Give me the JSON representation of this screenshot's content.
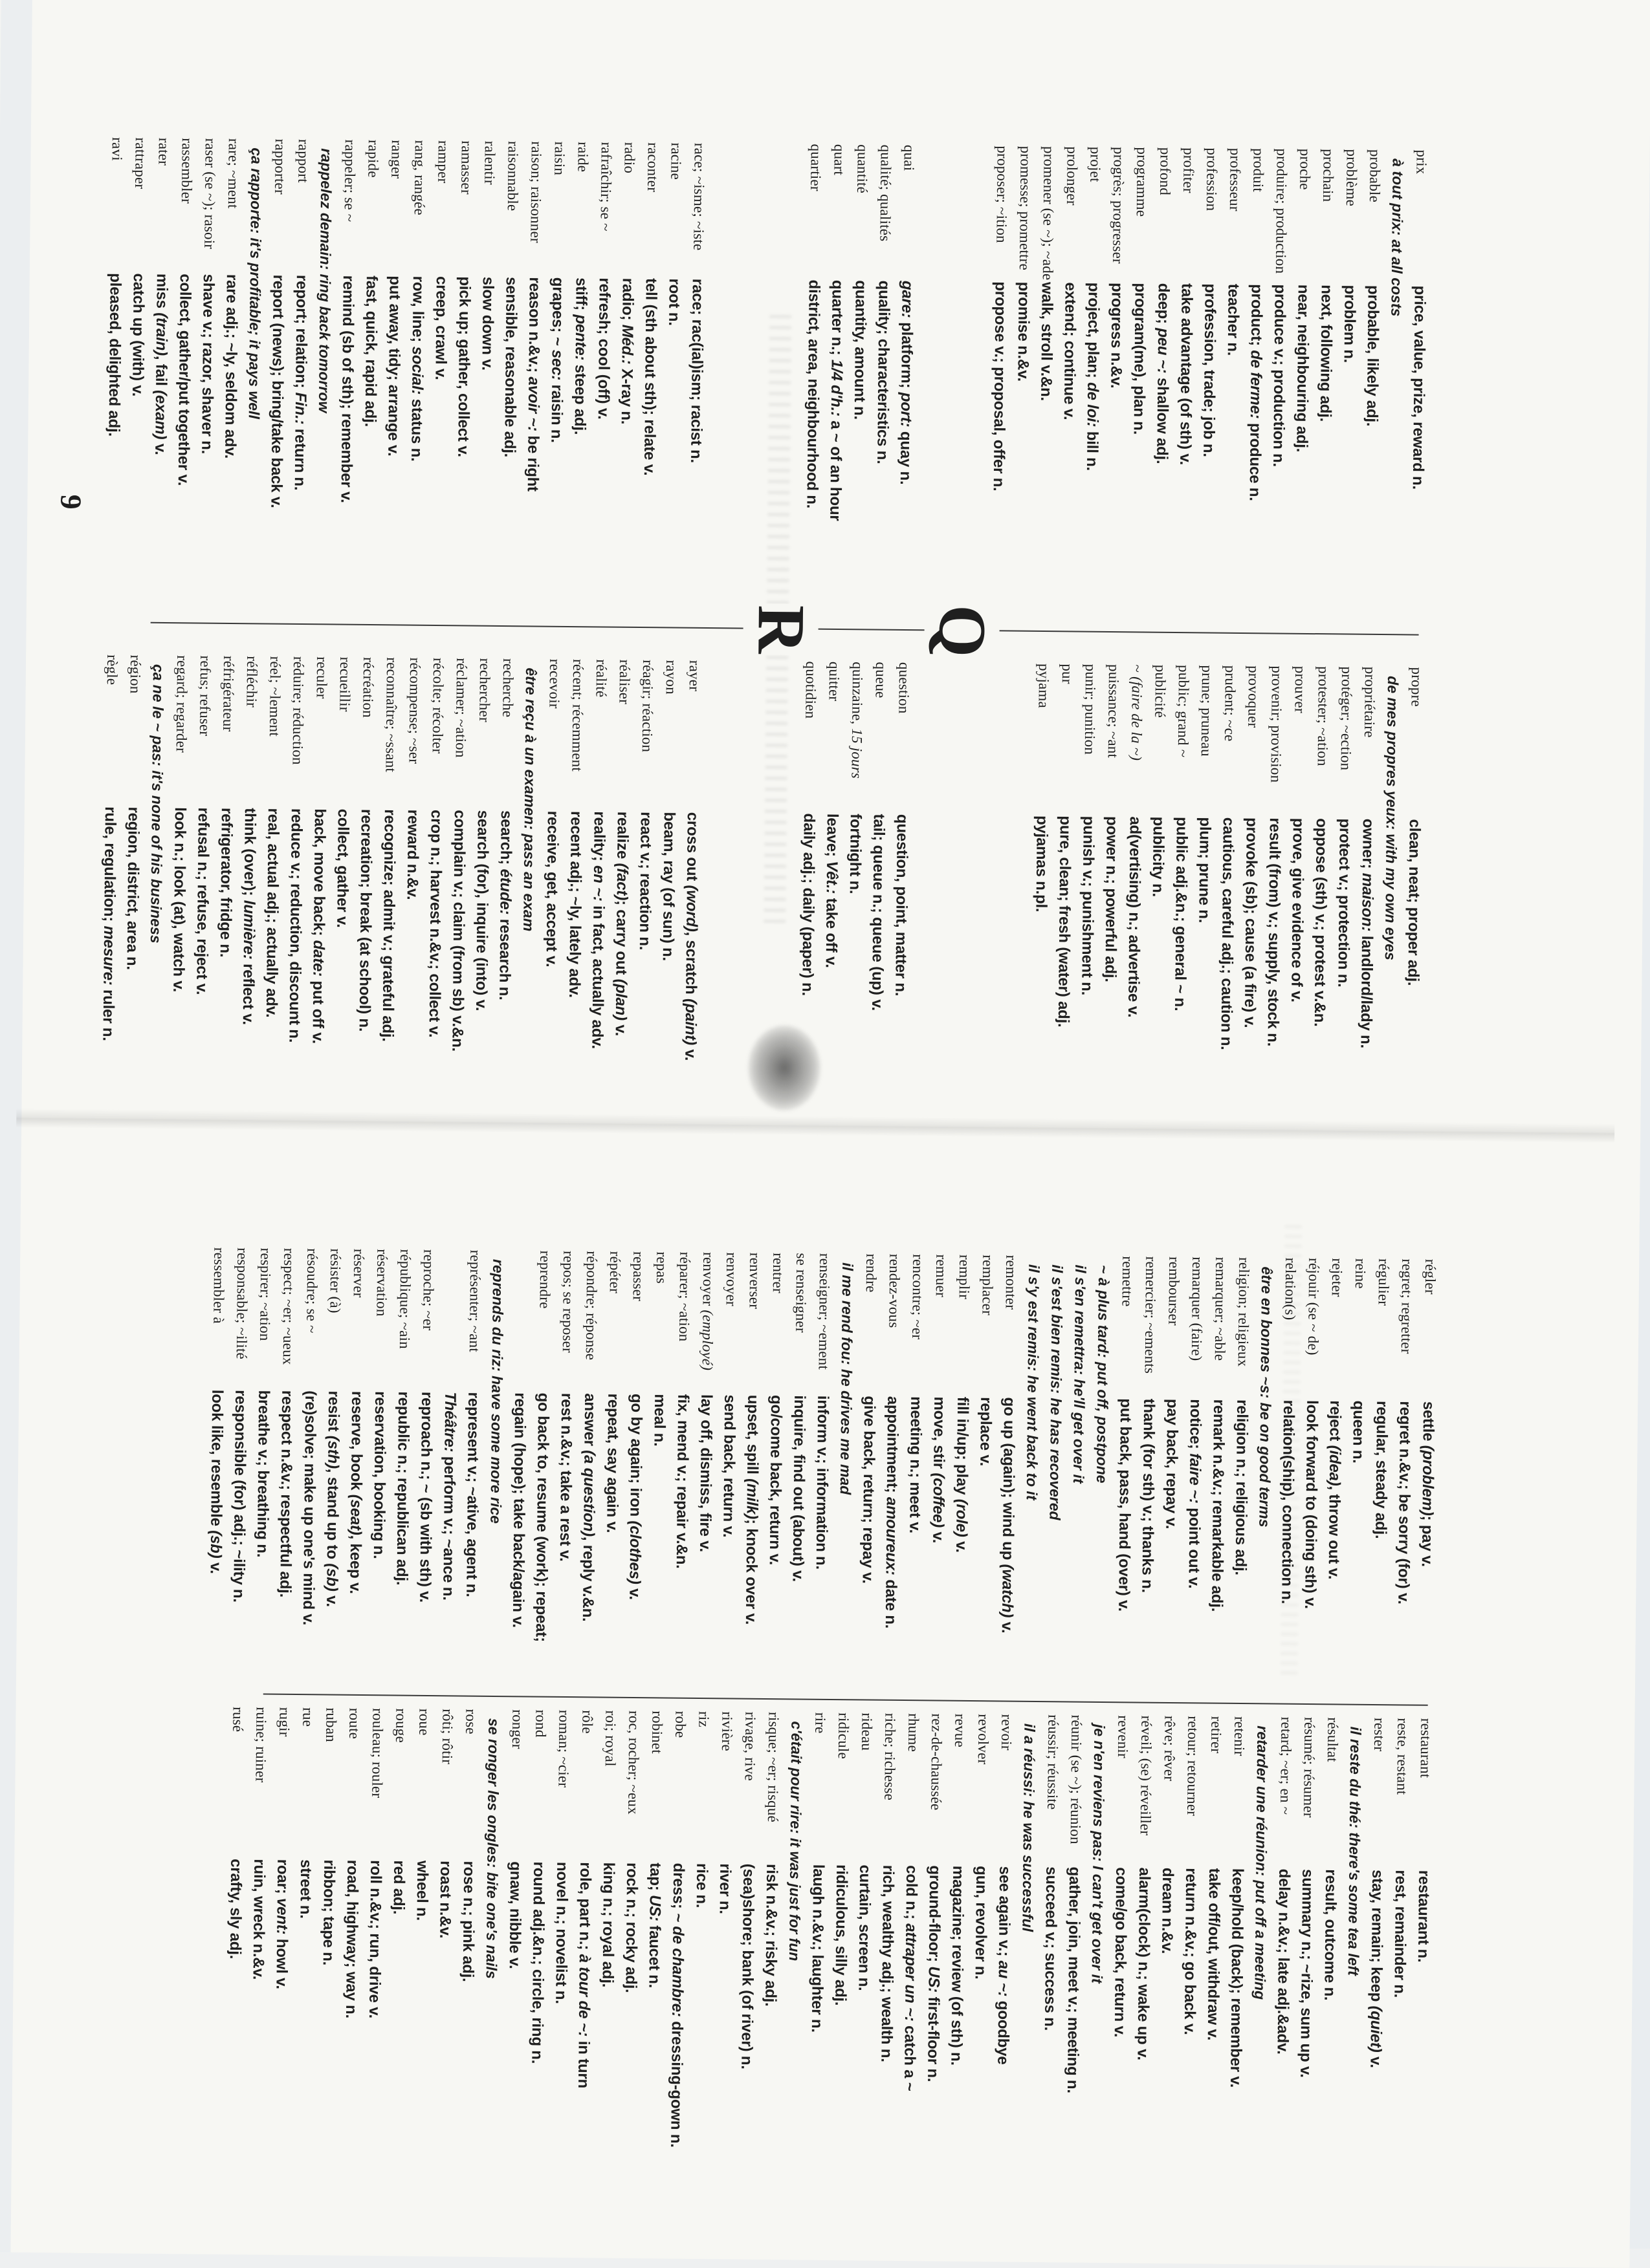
{
  "page": {
    "number": "9",
    "section_letter_q": "Q",
    "section_letter_r": "R"
  },
  "colors": {
    "ink": "#1f1f1f",
    "paper": "#f7f7f3"
  },
  "columns": {
    "col1": [
      {
        "f": "prix",
        "e": "price, value, prize, reward n."
      },
      {
        "x": "à tout prix: at all costs"
      },
      {
        "f": "probable",
        "e": "probable, likely adj."
      },
      {
        "f": "problème",
        "e": "problem n."
      },
      {
        "f": "prochain",
        "e": "next, following adj."
      },
      {
        "f": "proche",
        "e": "near, neighbouring adj."
      },
      {
        "f": "produire; production",
        "e": "produce v.; production n."
      },
      {
        "f": "produit",
        "e": "product; *de ferme:* produce n."
      },
      {
        "f": "professeur",
        "e": "teacher n."
      },
      {
        "f": "profession",
        "e": "profession, trade; job n."
      },
      {
        "f": "profiter",
        "e": "take advantage (of sth) v."
      },
      {
        "f": "profond",
        "e": "deep; *peu ~:* shallow adj."
      },
      {
        "f": "programme",
        "e": "program(me), plan n."
      },
      {
        "f": "progrès; progresser",
        "e": "progress n.&v."
      },
      {
        "f": "projet",
        "e": "project, plan; *de loi:* bill n."
      },
      {
        "f": "prolonger",
        "e": "extend; continue v."
      },
      {
        "f": "promener (se ~); ~ade",
        "e": "walk, stroll v.&n."
      },
      {
        "f": "promesse; promettre",
        "e": "promise n.&v."
      },
      {
        "f": "proposer; ~ition",
        "e": "propose v.; proposal, offer n."
      },
      {
        "g": 3
      },
      {
        "f": "quai",
        "e": "*gare:* platform; *port:* quay n."
      },
      {
        "f": "qualité; qualités",
        "e": "quality; characteristics n."
      },
      {
        "f": "quantité",
        "e": "quantity, amount n."
      },
      {
        "f": "quart",
        "e": "quarter n.; *1/4 d'h.:* a ~ of an hour"
      },
      {
        "f": "quartier",
        "e": "district, area, neighbourhood n."
      },
      {
        "g": 4
      },
      {
        "f": "race; ~isme; ~iste",
        "e": "race; rac(ial)ism; racist n."
      },
      {
        "f": "racine",
        "e": "root n."
      },
      {
        "f": "raconter",
        "e": "tell (sth about sth); relate v."
      },
      {
        "f": "radio",
        "e": "radio; *Méd.:* X-ray n."
      },
      {
        "f": "rafraîchir; se ~",
        "e": "refresh; cool (off) v."
      },
      {
        "f": "raide",
        "e": "stiff; *pente:* steep adj."
      },
      {
        "f": "raisin",
        "e": "grapes; *~ sec:* raisin n."
      },
      {
        "f": "raison; raisonner",
        "e": "reason n.&v.; *avoir ~:* be right"
      },
      {
        "f": "raisonnable",
        "e": "sensible, reasonable adj."
      },
      {
        "f": "ralentir",
        "e": "slow down v."
      },
      {
        "f": "ramasser",
        "e": "pick up; gather, collect v."
      },
      {
        "f": "ramper",
        "e": "creep, crawl v."
      },
      {
        "f": "rang, rangée",
        "e": "row, line; *social:* status n."
      },
      {
        "f": "ranger",
        "e": "put away, tidy; arrange v."
      },
      {
        "f": "rapide",
        "e": "fast, quick, rapid adj."
      },
      {
        "f": "rappeler; se ~",
        "e": "remind (sb of sth); remember v."
      },
      {
        "x": "rappelez demain: ring back tomorrow"
      },
      {
        "f": "rapport",
        "e": "report; relation; *Fin.:* return n."
      },
      {
        "f": "rapporter",
        "e": "report (news); bring/take back v."
      },
      {
        "x": "ça rapporte: it's profitable; it pays well"
      },
      {
        "f": "rare; ~ment",
        "e": "rare adj.; ~ly, seldom adv."
      },
      {
        "f": "raser (se ~); rasoir",
        "e": "shave v.; razor, shaver n."
      },
      {
        "f": "rassembler",
        "e": "collect, gather/put together v."
      },
      {
        "f": "rater",
        "e": "miss *(train)*, fail *(exam)* v."
      },
      {
        "f": "rattraper",
        "e": "catch up (with) v."
      },
      {
        "f": "ravi",
        "e": "pleased, delighted adj."
      }
    ],
    "col2": [
      {
        "f": "propre",
        "e": "clean, neat; proper adj."
      },
      {
        "x": "de mes propres yeux: with my own eyes"
      },
      {
        "f": "propriétaire",
        "e": "owner; *maison:* landlord/lady n."
      },
      {
        "f": "protéger; ~ection",
        "e": "protect v.; protection n."
      },
      {
        "f": "protester; ~ation",
        "e": "oppose (sth) v.; protest v.&n."
      },
      {
        "f": "prouver",
        "e": "prove, give evidence of v."
      },
      {
        "f": "provenir; provision",
        "e": "result (from) v.; supply, stock n."
      },
      {
        "f": "provoquer",
        "e": "provoke (sb); cause (a fire) v."
      },
      {
        "f": "prudent; ~ce",
        "e": "cautious, careful adj.; caution n."
      },
      {
        "f": "prune; pruneau",
        "e": "plum; prune n."
      },
      {
        "f": "public; grand ~",
        "e": "public adj.&n.; general ~ n."
      },
      {
        "f": "publicité",
        "e": "publicity n."
      },
      {
        "f": "~ *(faire de la ~)*",
        "e": "ad(vertising) n.; advertise v."
      },
      {
        "f": "puissance; ~ant",
        "e": "power n.; powerful adj."
      },
      {
        "f": "punir; punition",
        "e": "punish v.; punishment n."
      },
      {
        "f": "pur",
        "e": "pure, clean; fresh (water) adj."
      },
      {
        "f": "pyjama",
        "e": "pyjamas n.pl."
      },
      {
        "g": 5
      },
      {
        "f": "question",
        "e": "question, point, matter n."
      },
      {
        "f": "queue",
        "e": "tail; queue n.; queue (up) v."
      },
      {
        "f": "quinzaine, *15 jours*",
        "e": "fortnight n."
      },
      {
        "f": "quitter",
        "e": "leave; *Vêt.:* take off v."
      },
      {
        "f": "quotidien",
        "e": "daily adj.; daily (paper) n."
      },
      {
        "g": 4
      },
      {
        "f": "rayer",
        "e": "cross out *(word)*, scratch *(paint)* v."
      },
      {
        "f": "rayon",
        "e": "beam, ray (of sun) n."
      },
      {
        "f": "réagir; réaction",
        "e": "react v.; reaction n."
      },
      {
        "f": "réaliser",
        "e": "realize *(fact)*; carry out *(plan)* v."
      },
      {
        "f": "réalité",
        "e": "reality; *en ~:* in fact, actually adv."
      },
      {
        "f": "récent; récemment",
        "e": "recent adj.; ~ly, lately adv."
      },
      {
        "f": "recevoir",
        "e": "receive, get, accept v."
      },
      {
        "x": "être reçu à un examen: pass an exam"
      },
      {
        "f": "recherche",
        "e": "search; *étude:* research n."
      },
      {
        "f": "rechercher",
        "e": "search (for), inquire (into) v."
      },
      {
        "f": "réclamer; ~ation",
        "e": "complain v.; claim (from sb) v.&n."
      },
      {
        "f": "récolte; récolter",
        "e": "crop n.; harvest n.&v.; collect v."
      },
      {
        "f": "récompense; ~ser",
        "e": "reward n.&v."
      },
      {
        "f": "reconnaître; ~ssant",
        "e": "recognize; admit v.; grateful adj."
      },
      {
        "f": "récréation",
        "e": "recreation; break (at school) n."
      },
      {
        "f": "recueillir",
        "e": "collect, gather v."
      },
      {
        "f": "reculer",
        "e": "back, move back; *date:* put off v."
      },
      {
        "f": "réduire; réduction",
        "e": "reduce v.; reduction, discount n."
      },
      {
        "f": "réel; ~lement",
        "e": "real, actual adj.; actually adv."
      },
      {
        "f": "réfléchir",
        "e": "think (over); *lumière:* reflect v."
      },
      {
        "f": "réfrigérateur",
        "e": "refrigerator, fridge n."
      },
      {
        "f": "refus; refuser",
        "e": "refusal n.; refuse, reject v."
      },
      {
        "f": "regard; regarder",
        "e": "look n.; look (at), watch v."
      },
      {
        "x": "ça ne le ~ pas: it's none of his business"
      },
      {
        "f": "région",
        "e": "region, district, area n."
      },
      {
        "f": "règle",
        "e": "rule, regulation; *mesure:* ruler n."
      }
    ],
    "col3": [
      {
        "f": "régler",
        "e": "settle *(problem)*; pay v."
      },
      {
        "f": "regret; regretter",
        "e": "regret n.&v.; be sorry (for) v."
      },
      {
        "f": "régulier",
        "e": "regular, steady adj."
      },
      {
        "f": "reine",
        "e": "queen n."
      },
      {
        "f": "rejeter",
        "e": "reject *(idea)*, throw out v."
      },
      {
        "f": "réjouir (se ~ de)",
        "e": "look forward to (doing sth) v."
      },
      {
        "f": "relation(s)",
        "e": "relation(ship), connection n."
      },
      {
        "x": "être en bonnes ~s: be on good terms"
      },
      {
        "f": "religion; religieux",
        "e": "religion n.; religious adj."
      },
      {
        "f": "remarquer; ~able",
        "e": "remark n.&v.; remarkable adj."
      },
      {
        "f": "remarquer (faire)",
        "e": "notice; *faire ~:* point out v."
      },
      {
        "f": "rembourser",
        "e": "pay back, repay v."
      },
      {
        "f": "remercier; ~ements",
        "e": "thank (for sth) v.; thanks n."
      },
      {
        "f": "remettre",
        "e": "put back, pass, hand (over) v."
      },
      {
        "x": "~ à plus tard: put off, postpone"
      },
      {
        "x": "il s'en remettra: he'll get over it"
      },
      {
        "x": "il s'est bien remis: he has recovered"
      },
      {
        "x": "il s'y est remis: he went back to it"
      },
      {
        "f": "remonter",
        "e": "go up (again); wind up *(watch)* v."
      },
      {
        "f": "remplacer",
        "e": "replace v."
      },
      {
        "f": "remplir",
        "e": "fill in/up; play *(role)* v."
      },
      {
        "f": "remuer",
        "e": "move, stir *(coffee)* v."
      },
      {
        "f": "rencontre; ~er",
        "e": "meeting n.; meet v."
      },
      {
        "f": "rendez-vous",
        "e": "appointment; *amoureux:* date n."
      },
      {
        "f": "rendre",
        "e": "give back, return; repay v."
      },
      {
        "x": "il me rend fou: he drives me mad"
      },
      {
        "f": "renseigner; ~ement",
        "e": "inform v.; information n."
      },
      {
        "f": "se renseigner",
        "e": "inquire, find out (about) v."
      },
      {
        "f": "rentrer",
        "e": "go/come back, return v."
      },
      {
        "f": "renverser",
        "e": "upset, spill *(milk)*; knock over v."
      },
      {
        "f": "renvoyer",
        "e": "send back, return v."
      },
      {
        "f": "renvoyer *(employé)*",
        "e": "lay off, dismiss, fire v."
      },
      {
        "f": "réparer; ~ation",
        "e": "fix, mend v.; repair v.&n."
      },
      {
        "f": "repas",
        "e": "meal n."
      },
      {
        "f": "repasser",
        "e": "go by again; iron *(clothes)* v."
      },
      {
        "f": "répéter",
        "e": "repeat, say again v."
      },
      {
        "f": "répondre; réponse",
        "e": "answer *(a question)*, reply v.&n."
      },
      {
        "f": "repos; se reposer",
        "e": "rest n.&v.; take a rest v."
      },
      {
        "f": "reprendre",
        "e": "go back to, resume (work); repeat;"
      },
      {
        "c": "regain (hope); take back/again v."
      },
      {
        "x": "reprends du riz: have some more rice"
      },
      {
        "f": "représenter; ~ant",
        "e": "represent v.; ~ative, agent n."
      },
      {
        "c": "*Théâtre:* perform v.; ~ance n."
      },
      {
        "f": "reproche; ~er",
        "e": "reproach n.; ~ (sb with sth) v."
      },
      {
        "f": "république; ~ain",
        "e": "republic n.; republican adj."
      },
      {
        "f": "réservation",
        "e": "reservation, booking n."
      },
      {
        "f": "réserver",
        "e": "reserve, book *(seat)*, keep v."
      },
      {
        "f": "résister (à)",
        "e": "resist *(sth)*, stand up to *(sb)* v."
      },
      {
        "f": "résoudre; se ~",
        "e": "(re)solve; make up one's mind v."
      },
      {
        "f": "respect; ~er; ~ueux",
        "e": "respect n.&v.; respectful adj."
      },
      {
        "f": "respirer; ~ation",
        "e": "breathe v.; breathing n."
      },
      {
        "f": "responsable; ~ilité",
        "e": "responsible (for) adj.; ~ility n."
      },
      {
        "f": "ressembler à",
        "e": "look like, resemble *(sb)* v."
      }
    ],
    "col4": [
      {
        "f": "restaurant",
        "e": "restaurant n."
      },
      {
        "f": "reste, restant",
        "e": "rest, remainder n."
      },
      {
        "f": "rester",
        "e": "stay, remain; keep *(quiet)* v."
      },
      {
        "x": "il reste du thé: there's some tea left"
      },
      {
        "f": "résultat",
        "e": "result, outcome n."
      },
      {
        "f": "résumé; résumer",
        "e": "summary n.; ~rize, sum up v."
      },
      {
        "f": "retard; ~er; en ~",
        "e": "delay n.&v.; late adj.&adv."
      },
      {
        "x": "retarder une réunion: put off a meeting"
      },
      {
        "f": "retenir",
        "e": "keep/hold (back); remember v."
      },
      {
        "f": "retirer",
        "e": "take off/out, withdraw v."
      },
      {
        "f": "retour; retourner",
        "e": "return n.&v.; go back v."
      },
      {
        "f": "rêve; rêver",
        "e": "dream n.&v."
      },
      {
        "f": "réveil; (se) réveiller",
        "e": "alarm(clock) n.; wake up v."
      },
      {
        "f": "revenir",
        "e": "come/go back, return v."
      },
      {
        "x": "je n'en reviens pas: I can't get over it"
      },
      {
        "f": "réunir (se ~); réunion",
        "e": "gather, join, meet v.; meeting n."
      },
      {
        "f": "réussir; réussite",
        "e": "succeed v.; success n."
      },
      {
        "x": "il a réussi: he was successful"
      },
      {
        "f": "revoir",
        "e": "see again v.; *au ~:* goodbye"
      },
      {
        "f": "revolver",
        "e": "gun, revolver n."
      },
      {
        "f": "revue",
        "e": "magazine; review (of sth) n."
      },
      {
        "f": "rez-de-chaussée",
        "e": "ground-floor; *US:* first-floor n."
      },
      {
        "f": "rhume",
        "e": "cold n.; *attraper un ~:* catch a ~"
      },
      {
        "f": "riche; richesse",
        "e": "rich, wealthy adj.; wealth n."
      },
      {
        "f": "rideau",
        "e": "curtain, screen n."
      },
      {
        "f": "ridicule",
        "e": "ridiculous, silly adj."
      },
      {
        "f": "rire",
        "e": "laugh n.&v.; laughter n."
      },
      {
        "x": "c'était pour rire: it was just for fun"
      },
      {
        "f": "risque; ~er; risqué",
        "e": "risk n.&v.; risky adj."
      },
      {
        "f": "rivage, rive",
        "e": "(sea)shore; bank (of river) n."
      },
      {
        "f": "rivière",
        "e": "river n."
      },
      {
        "f": "riz",
        "e": "rice n."
      },
      {
        "f": "robe",
        "e": "dress; *~ de chambre:* dressing-gown n."
      },
      {
        "f": "robinet",
        "e": "tap; *US:* faucet n."
      },
      {
        "f": "roc, rocher; ~eux",
        "e": "rock n.; rocky adj."
      },
      {
        "f": "roi; royal",
        "e": "king n.; royal adj."
      },
      {
        "f": "rôle",
        "e": "role, part n.; *à tour de ~:* in turn"
      },
      {
        "f": "roman; ~cier",
        "e": "novel n.; novelist n."
      },
      {
        "f": "rond",
        "e": "round adj.&n.; circle, ring n."
      },
      {
        "f": "ronger",
        "e": "gnaw, nibble v."
      },
      {
        "x": "se ronger les ongles: bite one's nails"
      },
      {
        "f": "rose",
        "e": "rose n.; pink adj."
      },
      {
        "f": "rôti; rôtir",
        "e": "roast n.&v."
      },
      {
        "f": "roue",
        "e": "wheel n."
      },
      {
        "f": "rouge",
        "e": "red adj."
      },
      {
        "f": "rouleau; rouler",
        "e": "roll n.&v.; run, drive v."
      },
      {
        "f": "route",
        "e": "road, highway; way n."
      },
      {
        "f": "ruban",
        "e": "ribbon; tape n."
      },
      {
        "f": "rue",
        "e": "street n."
      },
      {
        "f": "rugir",
        "e": "roar; *vent:* howl v."
      },
      {
        "f": "ruine; ruiner",
        "e": "ruin, wreck n.&v."
      },
      {
        "f": "rusé",
        "e": "crafty, sly adj."
      }
    ]
  }
}
